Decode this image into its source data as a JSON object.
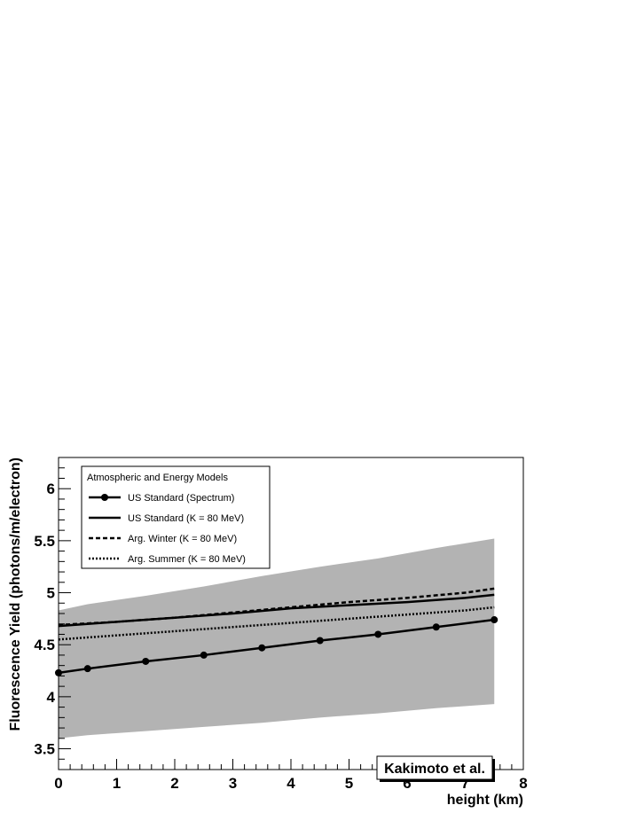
{
  "chart_data": {
    "type": "line",
    "xlabel": "height (km)",
    "ylabel": "Fluorescence Yield (photons/m/electron)",
    "xlim": [
      0,
      8
    ],
    "ylim": [
      3.3,
      6.3
    ],
    "x_ticks": [
      "0",
      "1",
      "2",
      "3",
      "4",
      "5",
      "6",
      "7",
      "8"
    ],
    "y_ticks": [
      "3.5",
      "4",
      "4.5",
      "5",
      "5.5",
      "6"
    ],
    "y_tick_values": [
      3.5,
      4.0,
      4.5,
      5.0,
      5.5,
      6.0
    ],
    "grid": false,
    "legend_placement": "top-left",
    "legend_title": "Atmospheric and Energy Models",
    "annotation": "Kakimoto et al.",
    "band": {
      "color": "#b3b3b3",
      "x": [
        0,
        0.5,
        1.5,
        2.5,
        3.5,
        4.5,
        5.5,
        6.5,
        7.5
      ],
      "upper": [
        4.83,
        4.89,
        4.97,
        5.06,
        5.16,
        5.25,
        5.33,
        5.43,
        5.52
      ],
      "lower": [
        3.6,
        3.63,
        3.67,
        3.71,
        3.75,
        3.8,
        3.84,
        3.89,
        3.93
      ]
    },
    "series": [
      {
        "name": "US Standard (Spectrum)",
        "style": "solid-markers",
        "color": "#000000",
        "x": [
          0,
          0.5,
          1.5,
          2.5,
          3.5,
          4.5,
          5.5,
          6.5,
          7.5
        ],
        "y": [
          4.23,
          4.27,
          4.34,
          4.4,
          4.47,
          4.54,
          4.6,
          4.67,
          4.74
        ]
      },
      {
        "name": "US Standard (K = 80 MeV)",
        "style": "solid",
        "color": "#000000",
        "x": [
          0,
          1,
          2,
          3,
          4,
          5,
          6,
          7,
          7.5
        ],
        "y": [
          4.68,
          4.72,
          4.76,
          4.8,
          4.85,
          4.88,
          4.91,
          4.95,
          4.98
        ]
      },
      {
        "name": "Arg. Winter (K = 80 MeV)",
        "style": "dashed",
        "color": "#000000",
        "x": [
          0,
          1,
          2,
          3,
          4,
          5,
          6,
          7,
          7.5
        ],
        "y": [
          4.69,
          4.72,
          4.76,
          4.81,
          4.86,
          4.91,
          4.95,
          5.0,
          5.04
        ]
      },
      {
        "name": "Arg. Summer (K = 80 MeV)",
        "style": "dotted",
        "color": "#000000",
        "x": [
          0,
          1,
          2,
          3,
          4,
          5,
          6,
          7,
          7.5
        ],
        "y": [
          4.55,
          4.59,
          4.63,
          4.67,
          4.71,
          4.75,
          4.79,
          4.83,
          4.86
        ]
      }
    ]
  }
}
